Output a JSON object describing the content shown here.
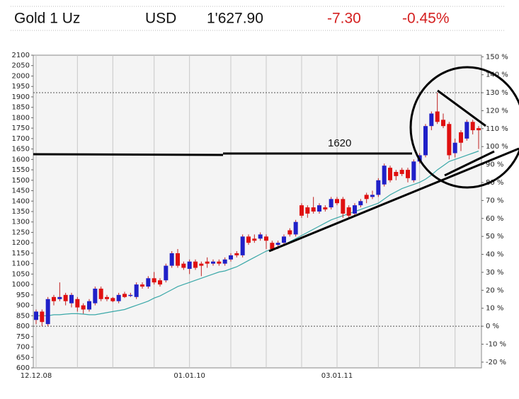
{
  "header": {
    "name": "Gold 1 Uz",
    "currency": "USD",
    "price": "1'627.90",
    "change": "-7.30",
    "change_pct": "-0.45%"
  },
  "chart_data": {
    "type": "candlestick",
    "categories": [
      "12.12.08",
      null,
      null,
      null,
      null,
      null,
      null,
      null,
      null,
      null,
      null,
      null,
      null,
      null,
      null,
      null,
      null,
      null,
      null,
      null,
      null,
      null,
      null,
      null,
      null,
      null,
      "01.01.10",
      null,
      null,
      null,
      null,
      null,
      null,
      null,
      null,
      null,
      null,
      null,
      null,
      null,
      null,
      null,
      null,
      null,
      null,
      null,
      null,
      null,
      null,
      null,
      null,
      "03.01.11",
      null,
      null,
      null,
      null,
      null,
      null,
      null,
      null,
      null,
      null,
      null,
      null,
      null,
      null,
      null,
      null,
      null,
      null,
      null,
      null,
      null,
      null,
      null,
      null
    ],
    "open": [
      830,
      870,
      810,
      940,
      930,
      950,
      910,
      930,
      900,
      880,
      910,
      980,
      940,
      935,
      920,
      955,
      945,
      940,
      1000,
      990,
      1030,
      1020,
      1020,
      1090,
      1150,
      1100,
      1075,
      1110,
      1100,
      1110,
      1100,
      1110,
      1100,
      1120,
      1150,
      1140,
      1230,
      1220,
      1220,
      1230,
      1200,
      1190,
      1200,
      1260,
      1240,
      1380,
      1370,
      1370,
      1350,
      1370,
      1370,
      1410,
      1410,
      1370,
      1340,
      1380,
      1430,
      1420,
      1430,
      1480,
      1560,
      1540,
      1550,
      1550,
      1500,
      1590,
      1620,
      1760,
      1830,
      1790,
      1770,
      1630,
      1730,
      1700,
      1780,
      1750
    ],
    "high": [
      880,
      880,
      940,
      950,
      1010,
      960,
      960,
      940,
      910,
      930,
      990,
      990,
      950,
      940,
      960,
      965,
      960,
      1010,
      1010,
      1040,
      1060,
      1030,
      1100,
      1160,
      1170,
      1110,
      1120,
      1120,
      1110,
      1130,
      1120,
      1120,
      1130,
      1150,
      1160,
      1240,
      1240,
      1240,
      1250,
      1240,
      1210,
      1210,
      1240,
      1270,
      1310,
      1390,
      1380,
      1420,
      1390,
      1380,
      1420,
      1420,
      1420,
      1380,
      1390,
      1410,
      1440,
      1450,
      1510,
      1580,
      1570,
      1550,
      1560,
      1560,
      1600,
      1630,
      1770,
      1830,
      1920,
      1820,
      1780,
      1700,
      1740,
      1790,
      1790,
      1760
    ],
    "low": [
      810,
      800,
      800,
      900,
      920,
      900,
      890,
      870,
      860,
      870,
      900,
      920,
      920,
      915,
      910,
      935,
      940,
      930,
      980,
      980,
      1000,
      990,
      1010,
      1080,
      1080,
      1070,
      1050,
      1070,
      1040,
      1080,
      1090,
      1090,
      1090,
      1110,
      1130,
      1130,
      1190,
      1200,
      1210,
      1170,
      1160,
      1170,
      1190,
      1230,
      1230,
      1320,
      1320,
      1340,
      1340,
      1350,
      1360,
      1380,
      1320,
      1320,
      1330,
      1370,
      1390,
      1410,
      1420,
      1470,
      1490,
      1500,
      1520,
      1490,
      1490,
      1580,
      1610,
      1740,
      1770,
      1750,
      1600,
      1610,
      1640,
      1690,
      1720,
      1650
    ],
    "close": [
      870,
      820,
      930,
      920,
      940,
      920,
      950,
      890,
      880,
      920,
      980,
      930,
      930,
      920,
      950,
      940,
      950,
      1000,
      990,
      1030,
      1010,
      1000,
      1090,
      1150,
      1090,
      1080,
      1110,
      1080,
      1090,
      1100,
      1110,
      1100,
      1120,
      1140,
      1140,
      1230,
      1200,
      1210,
      1240,
      1210,
      1170,
      1200,
      1230,
      1240,
      1300,
      1330,
      1340,
      1350,
      1380,
      1360,
      1410,
      1390,
      1340,
      1330,
      1380,
      1400,
      1410,
      1430,
      1500,
      1570,
      1500,
      1520,
      1530,
      1510,
      1590,
      1620,
      1760,
      1820,
      1780,
      1760,
      1620,
      1680,
      1680,
      1780,
      1740,
      1740
    ],
    "up_color": "#2020c8",
    "down_color": "#e01010",
    "wick_color": "#c02020",
    "ma": {
      "color": "#3aa8a8",
      "values": [
        850,
        850,
        850,
        855,
        855,
        858,
        860,
        860,
        858,
        855,
        855,
        860,
        865,
        870,
        875,
        880,
        890,
        900,
        910,
        920,
        935,
        945,
        960,
        975,
        990,
        1000,
        1010,
        1020,
        1030,
        1040,
        1050,
        1060,
        1065,
        1075,
        1085,
        1100,
        1115,
        1130,
        1145,
        1160,
        1170,
        1180,
        1190,
        1205,
        1220,
        1235,
        1250,
        1265,
        1280,
        1295,
        1310,
        1320,
        1330,
        1340,
        1350,
        1360,
        1370,
        1380,
        1390,
        1410,
        1430,
        1445,
        1460,
        1470,
        1480,
        1490,
        1505,
        1525,
        1550,
        1570,
        1590,
        1600,
        1610,
        1620,
        1630,
        1640
      ]
    },
    "xticks": [
      0,
      7,
      13,
      20,
      26,
      33,
      39,
      45,
      51,
      58,
      65,
      71
    ],
    "ylim": [
      600,
      2100
    ],
    "yticks": [
      600,
      650,
      700,
      750,
      800,
      850,
      900,
      950,
      1000,
      1050,
      1100,
      1150,
      1200,
      1250,
      1300,
      1350,
      1400,
      1450,
      1500,
      1550,
      1600,
      1650,
      1700,
      1750,
      1800,
      1850,
      1900,
      1950,
      2000,
      2050,
      2100
    ],
    "y2lim": [
      -23.2,
      150.9
    ],
    "y2ticks": [
      {
        "value": -20,
        "label": "-20 %"
      },
      {
        "value": -10,
        "label": "-10 %"
      },
      {
        "value": 0,
        "label": "0 %"
      },
      {
        "value": 10,
        "label": "10 %"
      },
      {
        "value": 20,
        "label": "20 %"
      },
      {
        "value": 30,
        "label": "30 %"
      },
      {
        "value": 40,
        "label": "40 %"
      },
      {
        "value": 50,
        "label": "50 %"
      },
      {
        "value": 60,
        "label": "60 %"
      },
      {
        "value": 70,
        "label": "70 %"
      },
      {
        "value": 80,
        "label": "80 %"
      },
      {
        "value": 90,
        "label": "90 %"
      },
      {
        "value": 100,
        "label": "100 %"
      },
      {
        "value": 110,
        "label": "110 %"
      },
      {
        "value": 120,
        "label": "120 %"
      },
      {
        "value": 130,
        "label": "130 %"
      },
      {
        "value": 140,
        "label": "140 %"
      },
      {
        "value": 150,
        "label": "150 %"
      }
    ],
    "reference_lines": [
      1920,
      800
    ],
    "grid": "x",
    "annotation": "1620"
  }
}
